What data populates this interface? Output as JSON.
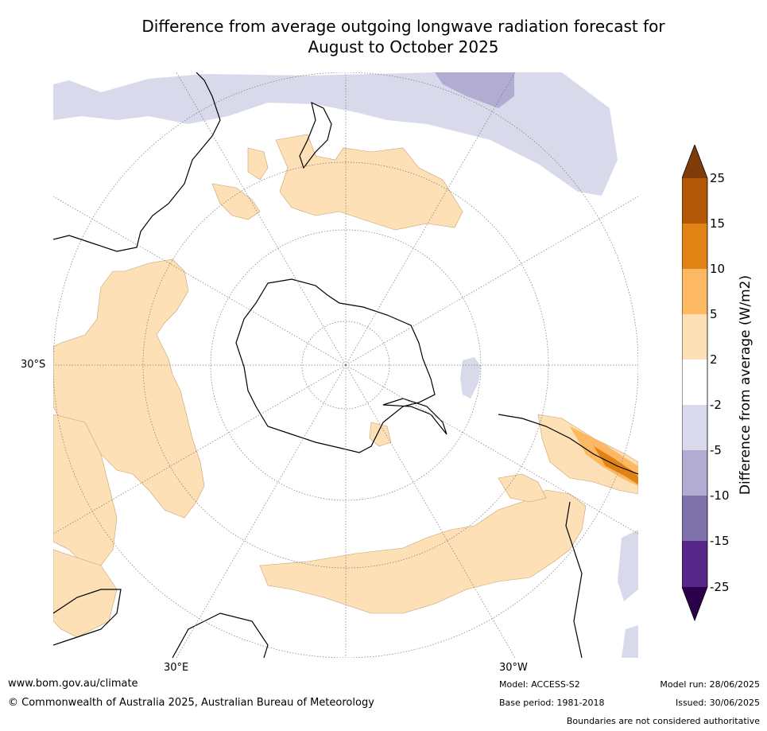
{
  "title": {
    "line1": "Difference from average outgoing longwave radiation forecast for",
    "line2": "August to October 2025"
  },
  "map": {
    "projection": "south polar stereographic",
    "lat_label": "30°S",
    "lon_labels": {
      "east": "30°E",
      "west": "30°W"
    }
  },
  "colorbar": {
    "title": "Difference from average (W/m2)",
    "ticks": [
      "25",
      "15",
      "10",
      "5",
      "2",
      "-2",
      "-5",
      "-10",
      "-15",
      "-25"
    ],
    "colors": {
      "above_25": "#7f3b08",
      "15_25": "#b35806",
      "10_15": "#e08214",
      "5_10": "#fdb863",
      "2_5": "#fee0b6",
      "neutral": "#ffffff",
      "m2_m5": "#d8daeb",
      "m5_m10": "#b2abd2",
      "m10_m15": "#8073ac",
      "m15_m25": "#542788",
      "below_m25": "#2d004b"
    }
  },
  "footer": {
    "url": "www.bom.gov.au/climate",
    "copyright": "© Commonwealth of Australia 2025, Australian Bureau of Meteorology",
    "model": "Model: ACCESS-S2",
    "base_period": "Base period: 1981-2018",
    "model_run": "Model run: 28/06/2025",
    "issued": "Issued: 30/06/2025",
    "disclaimer": "Boundaries are not considered authoritative"
  }
}
